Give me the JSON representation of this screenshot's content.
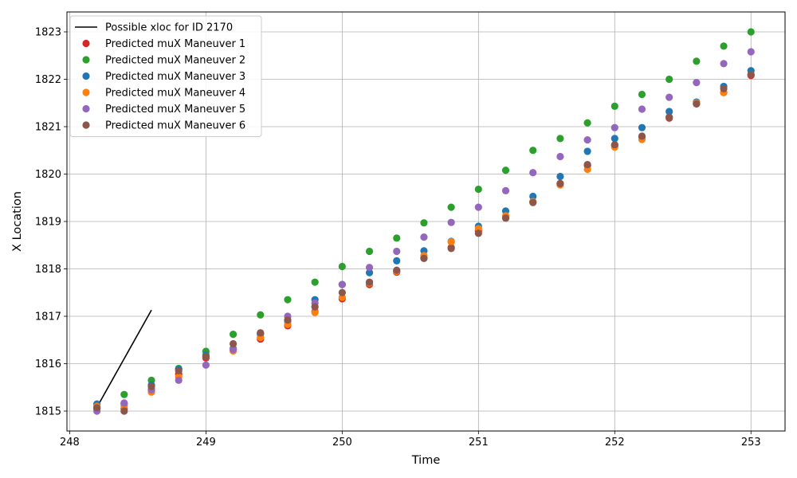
{
  "chart_data": {
    "type": "scatter",
    "title": "",
    "xlabel": "Time",
    "ylabel": "X Location",
    "xlim": [
      247.98,
      253.25
    ],
    "ylim": [
      1814.58,
      1823.42
    ],
    "xticks": [
      248,
      249,
      250,
      251,
      252,
      253
    ],
    "yticks": [
      1815,
      1816,
      1817,
      1818,
      1819,
      1820,
      1821,
      1822,
      1823
    ],
    "grid": true,
    "legend_position": "top-left",
    "line": {
      "name": "Possible xloc for ID 2170",
      "color": "#000000",
      "x": [
        248.2,
        248.6
      ],
      "y": [
        1815.08,
        1817.13
      ]
    },
    "x": [
      248.2,
      248.4,
      248.6,
      248.8,
      249.0,
      249.2,
      249.4,
      249.6,
      249.8,
      250.0,
      250.2,
      250.4,
      250.6,
      250.8,
      251.0,
      251.2,
      251.4,
      251.6,
      251.8,
      252.0,
      252.2,
      252.4,
      252.6,
      252.8,
      253.0
    ],
    "series": [
      {
        "name": "Predicted muX Maneuver 1",
        "color": "#d62728",
        "values": [
          1815.05,
          1815.05,
          1815.45,
          1815.78,
          1816.12,
          1816.3,
          1816.52,
          1816.8,
          1817.1,
          1817.37,
          1817.67,
          1817.93,
          1818.23,
          1818.45,
          1818.8,
          1819.08,
          1819.42,
          1819.8,
          1820.18,
          1820.6,
          1820.78,
          1821.18,
          1821.48,
          1821.72,
          1822.08
        ]
      },
      {
        "name": "Predicted muX Maneuver 2",
        "color": "#2ca02c",
        "values": [
          1815.08,
          1815.35,
          1815.65,
          1815.9,
          1816.26,
          1816.62,
          1817.03,
          1817.35,
          1817.72,
          1818.05,
          1818.37,
          1818.65,
          1818.97,
          1819.3,
          1819.68,
          1820.08,
          1820.5,
          1820.75,
          1821.08,
          1821.43,
          1821.68,
          1822.0,
          1822.38,
          1822.7,
          1823.0
        ]
      },
      {
        "name": "Predicted muX Maneuver 3",
        "color": "#1f77b4",
        "values": [
          1815.15,
          1815.15,
          1815.55,
          1815.88,
          1816.18,
          1816.32,
          1816.62,
          1816.9,
          1817.35,
          1817.67,
          1817.92,
          1818.17,
          1818.38,
          1818.58,
          1818.9,
          1819.22,
          1819.53,
          1819.95,
          1820.48,
          1820.75,
          1820.98,
          1821.32,
          1821.52,
          1821.85,
          1822.18
        ]
      },
      {
        "name": "Predicted muX Maneuver 4",
        "color": "#ff7f0e",
        "values": [
          1815.1,
          1815.1,
          1815.4,
          1815.72,
          1816.15,
          1816.27,
          1816.55,
          1816.83,
          1817.08,
          1817.4,
          1817.7,
          1817.95,
          1818.28,
          1818.57,
          1818.85,
          1819.12,
          1819.42,
          1819.77,
          1820.1,
          1820.57,
          1820.73,
          1821.2,
          1821.5,
          1821.72,
          1822.1
        ]
      },
      {
        "name": "Predicted muX Maneuver 5",
        "color": "#9467bd",
        "values": [
          1815.0,
          1815.17,
          1815.45,
          1815.65,
          1815.97,
          1816.3,
          1816.65,
          1817.0,
          1817.28,
          1817.67,
          1818.03,
          1818.37,
          1818.67,
          1818.98,
          1819.3,
          1819.65,
          1820.03,
          1820.37,
          1820.72,
          1820.98,
          1821.37,
          1821.62,
          1821.93,
          1822.33,
          1822.58
        ]
      },
      {
        "name": "Predicted muX Maneuver 6",
        "color": "#8c564b",
        "values": [
          1815.07,
          1815.0,
          1815.52,
          1815.85,
          1816.15,
          1816.42,
          1816.65,
          1816.92,
          1817.2,
          1817.5,
          1817.72,
          1817.97,
          1818.22,
          1818.43,
          1818.75,
          1819.07,
          1819.4,
          1819.8,
          1820.2,
          1820.62,
          1820.8,
          1821.2,
          1821.48,
          1821.8,
          1822.1
        ]
      }
    ]
  }
}
